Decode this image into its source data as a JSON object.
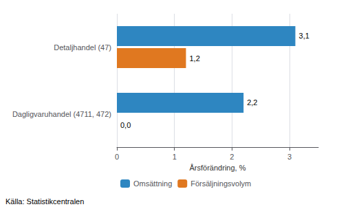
{
  "chart_data": {
    "type": "bar",
    "orientation": "horizontal",
    "categories": [
      "Dagligvaruhandel (4711, 472)",
      "Detaljhandel (47)"
    ],
    "series": [
      {
        "name": "Omsättning",
        "color": "#2E86C1",
        "values": [
          2.2,
          3.1
        ],
        "value_labels": [
          "2,2",
          "3,1"
        ]
      },
      {
        "name": "Försäljningsvolym",
        "color": "#E07820",
        "values": [
          0.0,
          1.2
        ],
        "value_labels": [
          "0,0",
          "1,2"
        ]
      }
    ],
    "xlabel": "Årsförändring, %",
    "xlim": [
      0,
      3.5
    ],
    "xticks": [
      0,
      1,
      2,
      3
    ],
    "grid": true,
    "legend": "bottom",
    "data_labels": true,
    "annotations": [
      "Källa: Statistikcentralen"
    ]
  }
}
